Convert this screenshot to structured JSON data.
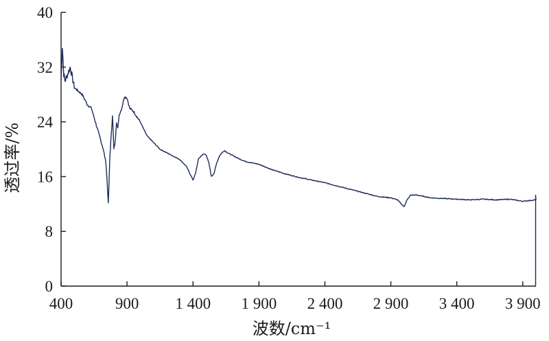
{
  "chart_data": {
    "type": "line",
    "xlabel": "波数/cm⁻¹",
    "ylabel": "透过率/%",
    "xlim": [
      400,
      4000
    ],
    "ylim": [
      0,
      40
    ],
    "x_ticks": [
      400,
      900,
      1400,
      1900,
      2400,
      2900,
      3400,
      3900
    ],
    "x_tick_labels": [
      "400",
      "900",
      "1 400",
      "1 900",
      "2 400",
      "2 900",
      "3 400",
      "3 900"
    ],
    "y_ticks": [
      0,
      8,
      16,
      24,
      32,
      40
    ],
    "y_tick_labels": [
      "0",
      "8",
      "16",
      "24",
      "32",
      "40"
    ],
    "grid": false,
    "line_color": "#1f2a5a",
    "series": [
      {
        "x": [
          400,
          410,
          420,
          430,
          450,
          470,
          500,
          530,
          560,
          600,
          630,
          660,
          690,
          720,
          740,
          750,
          758,
          765,
          770,
          780,
          790,
          800,
          810,
          820,
          830,
          840,
          860,
          880,
          900,
          920,
          950,
          1000,
          1050,
          1100,
          1150,
          1200,
          1250,
          1300,
          1350,
          1400,
          1420,
          1440,
          1460,
          1480,
          1500,
          1520,
          1540,
          1560,
          1580,
          1600,
          1620,
          1640,
          1660,
          1680,
          1700,
          1750,
          1800,
          1850,
          1900,
          1950,
          2000,
          2100,
          2200,
          2300,
          2400,
          2500,
          2600,
          2700,
          2800,
          2900,
          2950,
          2980,
          3000,
          3020,
          3050,
          3100,
          3150,
          3200,
          3300,
          3400,
          3500,
          3600,
          3700,
          3800,
          3900,
          4000
        ],
        "values": [
          30,
          35,
          31,
          30,
          31,
          32,
          29,
          28.5,
          28,
          26.5,
          26,
          24,
          22,
          20,
          18,
          15,
          12,
          16,
          19,
          22,
          25,
          20,
          21,
          24,
          23,
          25,
          26,
          27.7,
          27.5,
          26,
          25.5,
          24,
          22,
          21,
          20,
          19.5,
          19,
          18.5,
          17.5,
          15.5,
          16.5,
          18.5,
          19,
          19.3,
          19.2,
          18,
          16,
          16.5,
          18,
          19,
          19.5,
          19.8,
          19.5,
          19.3,
          19.1,
          18.6,
          18.2,
          18,
          17.8,
          17.4,
          17,
          16.4,
          15.9,
          15.5,
          15.1,
          14.6,
          14.1,
          13.6,
          13.1,
          12.9,
          12.6,
          12.0,
          11.6,
          12.5,
          13.3,
          13.3,
          13.1,
          12.9,
          12.8,
          12.7,
          12.6,
          12.7,
          12.6,
          12.7,
          12.4,
          12.6
        ]
      }
    ]
  }
}
